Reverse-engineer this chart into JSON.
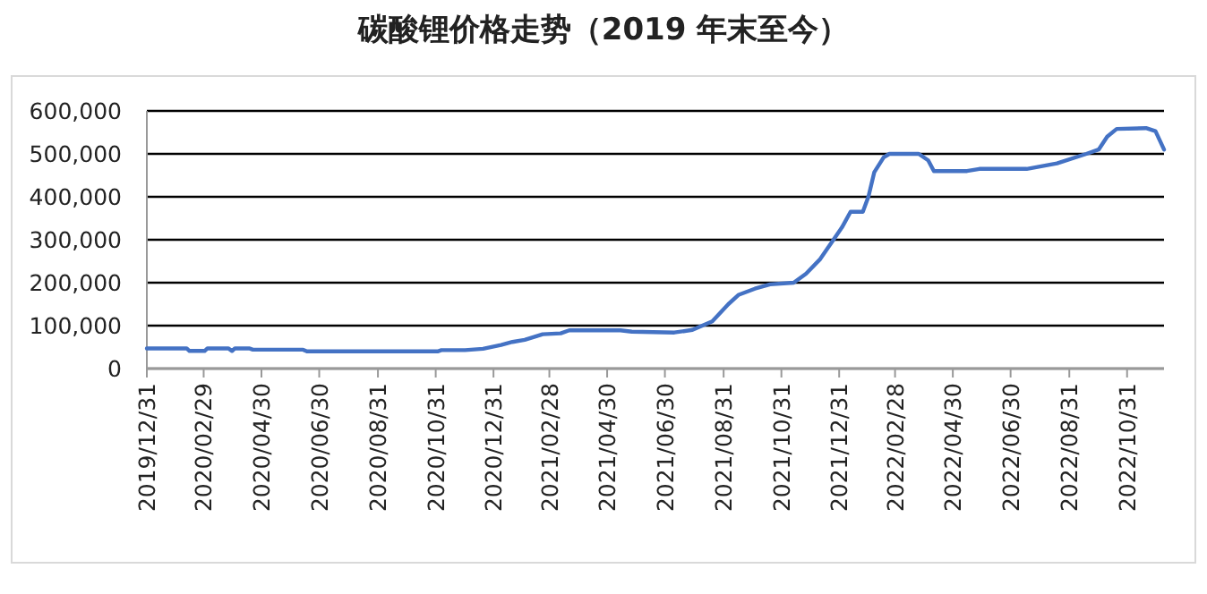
{
  "chart_data": {
    "type": "line",
    "title": "碳酸锂价格走势（2019 年末至今）",
    "x": [
      "2019-12-31",
      "2020-02-11",
      "2020-02-14",
      "2020-03-01",
      "2020-03-04",
      "2020-03-26",
      "2020-03-30",
      "2020-04-02",
      "2020-04-17",
      "2020-04-21",
      "2020-06-13",
      "2020-06-17",
      "2020-11-02",
      "2020-11-06",
      "2020-12-01",
      "2020-12-20",
      "2021-01-08",
      "2021-01-20",
      "2021-02-02",
      "2021-02-21",
      "2021-03-12",
      "2021-03-21",
      "2021-05-14",
      "2021-05-26",
      "2021-07-10",
      "2021-07-29",
      "2021-08-19",
      "2021-09-05",
      "2021-09-16",
      "2021-10-03",
      "2021-10-19",
      "2021-11-13",
      "2021-11-26",
      "2021-12-11",
      "2021-12-24",
      "2022-01-03",
      "2022-01-12",
      "2022-01-25",
      "2022-01-31",
      "2022-02-06",
      "2022-02-16",
      "2022-02-22",
      "2022-03-25",
      "2022-04-04",
      "2022-04-10",
      "2022-05-15",
      "2022-05-28",
      "2022-07-17",
      "2022-08-18",
      "2022-09-18",
      "2022-10-01",
      "2022-10-10",
      "2022-10-20",
      "2022-11-20",
      "2022-11-30",
      "2022-12-09"
    ],
    "series": [
      {
        "color": "#4472c4",
        "values": [
          47000,
          47000,
          41000,
          41000,
          47000,
          47000,
          41000,
          47000,
          47000,
          44000,
          44000,
          40000,
          40000,
          43000,
          43000,
          46000,
          55000,
          62000,
          67000,
          80000,
          82000,
          89000,
          89000,
          86000,
          84000,
          90000,
          110000,
          150000,
          172000,
          186000,
          196000,
          200000,
          221000,
          255000,
          297000,
          329000,
          365000,
          365000,
          401000,
          457000,
          492000,
          500000,
          500000,
          485000,
          460000,
          460000,
          465000,
          465000,
          478000,
          500000,
          510000,
          540000,
          558000,
          560000,
          553000,
          510000
        ]
      }
    ],
    "xlim": [
      "2019-12-31",
      "2022-12-09"
    ],
    "xticks": [
      {
        "value": "2019-12-31",
        "label": "2019/12/31"
      },
      {
        "value": "2020-02-29",
        "label": "2020/02/29"
      },
      {
        "value": "2020-04-30",
        "label": "2020/04/30"
      },
      {
        "value": "2020-06-30",
        "label": "2020/06/30"
      },
      {
        "value": "2020-08-31",
        "label": "2020/08/31"
      },
      {
        "value": "2020-10-31",
        "label": "2020/10/31"
      },
      {
        "value": "2020-12-31",
        "label": "2020/12/31"
      },
      {
        "value": "2021-02-28",
        "label": "2021/02/28"
      },
      {
        "value": "2021-04-30",
        "label": "2021/04/30"
      },
      {
        "value": "2021-06-30",
        "label": "2021/06/30"
      },
      {
        "value": "2021-08-31",
        "label": "2021/08/31"
      },
      {
        "value": "2021-10-31",
        "label": "2021/10/31"
      },
      {
        "value": "2021-12-31",
        "label": "2021/12/31"
      },
      {
        "value": "2022-02-28",
        "label": "2022/02/28"
      },
      {
        "value": "2022-04-30",
        "label": "2022/04/30"
      },
      {
        "value": "2022-06-30",
        "label": "2022/06/30"
      },
      {
        "value": "2022-08-31",
        "label": "2022/08/31"
      },
      {
        "value": "2022-10-31",
        "label": "2022/10/31"
      }
    ],
    "ylim": [
      0,
      600000
    ],
    "yticks": [
      {
        "value": 0,
        "label": "0"
      },
      {
        "value": 100000,
        "label": "100,000"
      },
      {
        "value": 200000,
        "label": "200,000"
      },
      {
        "value": 300000,
        "label": "300,000"
      },
      {
        "value": 400000,
        "label": "400,000"
      },
      {
        "value": 500000,
        "label": "500,000"
      },
      {
        "value": 600000,
        "label": "600,000"
      }
    ],
    "grid": "y"
  }
}
